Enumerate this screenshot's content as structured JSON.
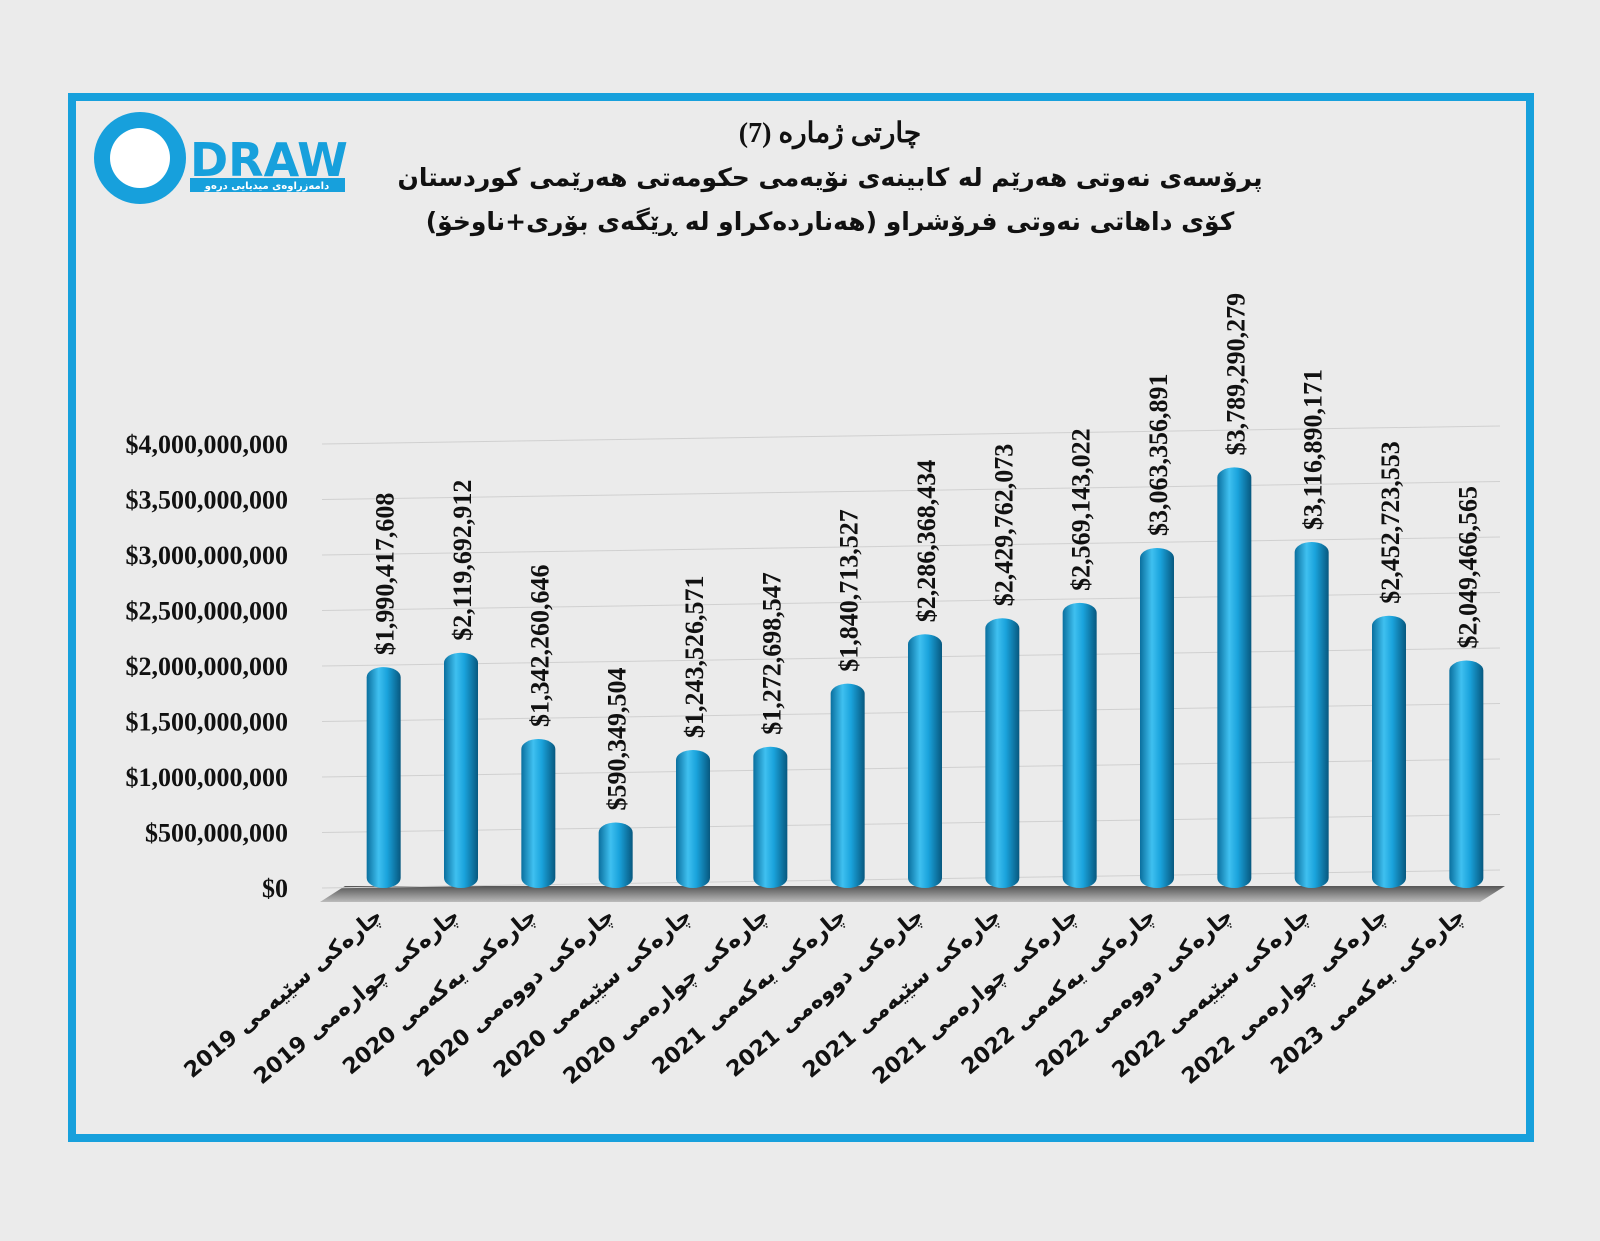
{
  "logo": {
    "name": "DRAW",
    "tagline": "دامەزراوەی میدیایی درەو"
  },
  "chart_data": {
    "type": "bar",
    "title": "چارتی ژمارە (7)",
    "subtitle": "پرۆسەی نەوتی هەرێم لە کابینەی نۆیەمی حکومەتی هەرێمی کوردستان",
    "subtitle2": "کۆی داهاتی نەوتی فرۆشراو (هەناردەکراو لە ڕێگەی بۆری+ناوخۆ)",
    "categories": [
      "چارەکی سێیەمی 2019",
      "چارەکی چوارەمی 2019",
      "چارەکی یەکەمی 2020",
      "چارەکی دووەمی 2020",
      "چارەکی سێیەمی 2020",
      "چارەکی چوارەمی 2020",
      "چارەکی یەکەمی 2021",
      "چارەکی دووەمی 2021",
      "چارەکی سێیەمی 2021",
      "چارەکی چوارەمی 2021",
      "چارەکی یەکەمی 2022",
      "چارەکی دووەمی 2022",
      "چارەکی سێیەمی 2022",
      "چارەکی چوارەمی 2022",
      "چارەکی یەکەمی 2023"
    ],
    "values": [
      1990417608,
      2119692912,
      1342260646,
      590349504,
      1243526571,
      1272698547,
      1840713527,
      2286368434,
      2429762073,
      2569143022,
      3063356891,
      3789290279,
      3116890171,
      2452723553,
      2049466565
    ],
    "value_labels": [
      "$1,990,417,608",
      "$2,119,692,912",
      "$1,342,260,646",
      "$590,349,504",
      "$1,243,526,571",
      "$1,272,698,547",
      "$1,840,713,527",
      "$2,286,368,434",
      "$2,429,762,073",
      "$2,569,143,022",
      "$3,063,356,891",
      "$3,789,290,279",
      "$3,116,890,171",
      "$2,452,723,553",
      "$2,049,466,565"
    ],
    "color": "#1aa3dc",
    "ylim": [
      0,
      4000000000
    ],
    "yticks": [
      {
        "value": 0,
        "label": "$0"
      },
      {
        "value": 500000000,
        "label": "$500,000,000"
      },
      {
        "value": 1000000000,
        "label": "$1,000,000,000"
      },
      {
        "value": 1500000000,
        "label": "$1,500,000,000"
      },
      {
        "value": 2000000000,
        "label": "$2,000,000,000"
      },
      {
        "value": 2500000000,
        "label": "$2,500,000,000"
      },
      {
        "value": 3000000000,
        "label": "$3,000,000,000"
      },
      {
        "value": 3500000000,
        "label": "$3,500,000,000"
      },
      {
        "value": 4000000000,
        "label": "$4,000,000,000"
      }
    ],
    "grid": true
  }
}
